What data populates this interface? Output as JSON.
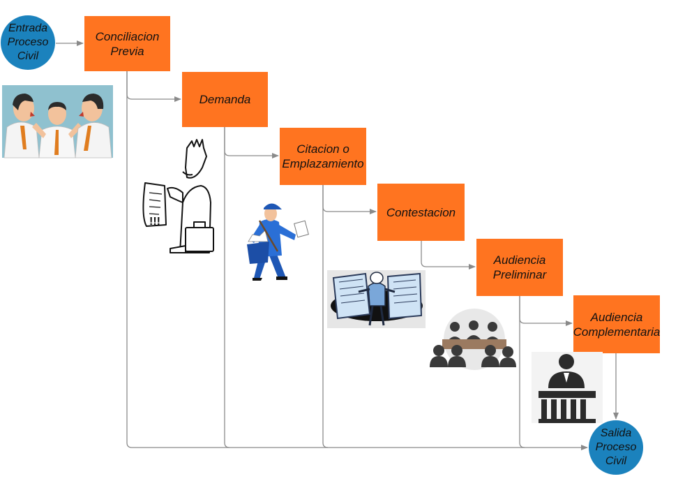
{
  "colors": {
    "step_fill": "#ff7420",
    "terminal_fill": "#1b82bd",
    "connector": "#8a8a8a"
  },
  "start": {
    "text": "Entrada\nProceso\nCivil"
  },
  "end": {
    "text": "Salida\nProceso\nCivil"
  },
  "steps": [
    {
      "text": "Conciliacion\nPrevia"
    },
    {
      "text": "Demanda"
    },
    {
      "text": "Citacion o\nEmplazamiento"
    },
    {
      "text": "Contestacion"
    },
    {
      "text": "Audiencia\nPreliminar"
    },
    {
      "text": "Audiencia\nComplementaria"
    }
  ],
  "illustrations": [
    {
      "icon": "arguing-people-icon"
    },
    {
      "icon": "man-with-document-and-briefcase-icon"
    },
    {
      "icon": "mail-carrier-icon"
    },
    {
      "icon": "person-between-documents-icon"
    },
    {
      "icon": "panel-hearing-icon"
    },
    {
      "icon": "judge-at-bench-icon"
    }
  ]
}
